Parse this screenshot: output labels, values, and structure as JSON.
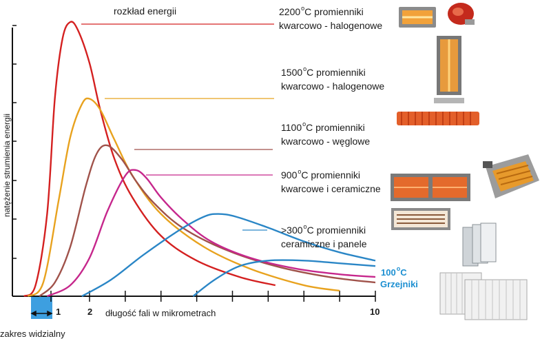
{
  "chart_data": {
    "type": "line",
    "title": "rozkład energii",
    "xlabel": "długość fali w mikrometrach",
    "ylabel": "natężenie strumienia energii",
    "x_tick_labels": [
      "1",
      "2",
      "10"
    ],
    "visible_range_label": "zakres widzialny",
    "grid": false,
    "series": [
      {
        "name": "2200°C promienniki kwarcowo - halogenowe",
        "color": "#d42020",
        "x": [
          0.3,
          0.6,
          0.9,
          1.1,
          1.3,
          1.5,
          1.7,
          2.0,
          2.3,
          2.7,
          3.2,
          4.0,
          5.0,
          6.2,
          7.2
        ],
        "y": [
          0,
          4,
          30,
          72,
          94,
          100,
          97,
          85,
          68,
          50,
          36,
          22,
          13,
          7,
          4
        ]
      },
      {
        "name": "1500°C promienniki kwarcowo - halogenowe",
        "color": "#e8a21e",
        "x": [
          0.4,
          0.8,
          1.2,
          1.5,
          1.8,
          2.0,
          2.3,
          2.7,
          3.2,
          4.0,
          5.2,
          6.5,
          8.0,
          9.0
        ],
        "y": [
          0,
          5,
          35,
          58,
          70,
          72,
          68,
          57,
          44,
          30,
          18,
          10,
          4,
          2
        ]
      },
      {
        "name": "1100°C promienniki kwarcowo - węglowe",
        "color": "#a0524a",
        "x": [
          0.7,
          1.1,
          1.5,
          1.9,
          2.2,
          2.5,
          2.9,
          3.3,
          3.8,
          4.6,
          5.8,
          7.2,
          8.7,
          10.0
        ],
        "y": [
          0,
          5,
          18,
          40,
          52,
          55,
          50,
          42,
          34,
          25,
          17,
          11,
          7,
          5
        ]
      },
      {
        "name": "900°C promienniki kwarcowe i ceramiczne",
        "color": "#c6278c",
        "x": [
          0.9,
          1.5,
          2.0,
          2.5,
          3.0,
          3.3,
          3.6,
          4.0,
          4.6,
          5.4,
          6.5,
          7.8,
          9.0,
          10.0
        ],
        "y": [
          0,
          4,
          14,
          31,
          44,
          46,
          43,
          36,
          28,
          20,
          14,
          10,
          8,
          7
        ]
      },
      {
        "name": ">300°C promienniki ceramiczne i panele",
        "color": "#2a86c6",
        "x": [
          1.8,
          2.6,
          3.5,
          4.5,
          5.2,
          5.6,
          6.1,
          7.0,
          8.0,
          9.0,
          10.0
        ],
        "y": [
          0,
          6,
          15,
          24,
          29,
          30,
          29,
          25,
          20,
          16,
          13
        ]
      },
      {
        "name": "100°C Grzejniki",
        "color": "#2a86c6",
        "x": [
          4.9,
          5.5,
          6.2,
          7.0,
          8.0,
          9.0,
          10.0
        ],
        "y": [
          0,
          6,
          11,
          13,
          13,
          12,
          11
        ]
      }
    ]
  },
  "legend": {
    "title": "rozkład energii",
    "entries": [
      {
        "temp": "2200",
        "unit": "o",
        "deg": "C",
        "line1_rest": " promienniki",
        "line2": "kwarcowo - halogenowe"
      },
      {
        "temp": "1500",
        "unit": "o",
        "deg": "C",
        "line1_rest": " promienniki",
        "line2": "kwarcowo - halogenowe"
      },
      {
        "temp": "1100",
        "unit": "o",
        "deg": "C",
        "line1_rest": " promienniki",
        "line2": "kwarcowo - węglowe"
      },
      {
        "temp": "900",
        "unit": "o",
        "deg": "C",
        "line1_rest": " promienniki",
        "line2": "kwarcowe i ceramiczne"
      },
      {
        "temp": ">300",
        "unit": "o",
        "deg": "C",
        "line1_rest": " promienniki",
        "line2": "ceramiczne i panele"
      }
    ],
    "radiators": {
      "temp": "100",
      "unit": "o",
      "deg": "C",
      "label": "Grzejniki"
    }
  },
  "icons": [
    "quartz-halogen-heater-icon",
    "infrared-bulb-icon",
    "tower-heater-icon",
    "carbon-heating-tube-icon",
    "ceramic-panel-heater-icon",
    "ceiling-gas-heater-icon",
    "ceramic-element-icon",
    "panel-radiator-icon",
    "column-radiator-icon"
  ]
}
